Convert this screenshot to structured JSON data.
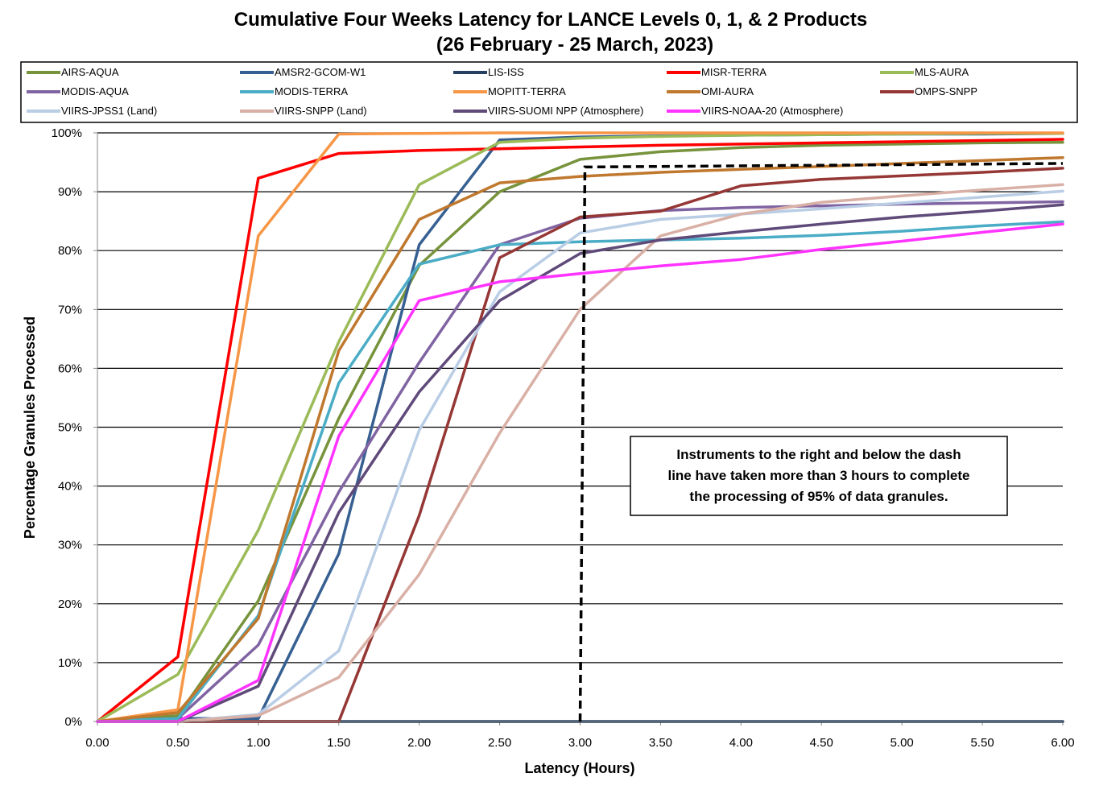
{
  "chart_data": {
    "type": "line",
    "title": "Cumulative Four Weeks Latency  for LANCE Levels 0, 1, & 2 Products",
    "subtitle": "(26  February   -  25  March,  2023)",
    "xlabel": "Latency (Hours)",
    "ylabel": "Percentage Granules Processed",
    "x": [
      0,
      0.5,
      1.0,
      1.5,
      2.0,
      2.5,
      3.0,
      3.5,
      4.0,
      4.5,
      5.0,
      5.5,
      6.0
    ],
    "xticks": [
      "0.00",
      "0.50",
      "1.00",
      "1.50",
      "2.00",
      "2.50",
      "3.00",
      "3.50",
      "4.00",
      "4.50",
      "5.00",
      "5.50",
      "6.00"
    ],
    "yticks": [
      "0%",
      "10%",
      "20%",
      "30%",
      "40%",
      "50%",
      "60%",
      "70%",
      "80%",
      "90%",
      "100%"
    ],
    "xlim": [
      0,
      6
    ],
    "ylim": [
      0,
      100
    ],
    "grid": "horizontal",
    "legend_position": "top",
    "series": [
      {
        "name": "AIRS-AQUA",
        "color": "#77933C",
        "values": [
          0,
          1,
          20.5,
          51.5,
          77.5,
          90,
          95.5,
          96.8,
          97.5,
          97.9,
          98.1,
          98.3,
          98.4
        ]
      },
      {
        "name": "AMSR2-GCOM-W1",
        "color": "#376092",
        "values": [
          0,
          0.5,
          0.5,
          28.5,
          81,
          98.8,
          99.3,
          99.5,
          99.6,
          99.7,
          99.8,
          99.8,
          99.9
        ]
      },
      {
        "name": "LIS-ISS",
        "color": "#254061",
        "values": [
          0,
          0,
          0,
          0,
          0,
          0,
          0,
          0,
          0,
          0,
          0,
          0,
          0
        ]
      },
      {
        "name": "MISR-TERRA",
        "color": "#FF0000",
        "values": [
          0,
          11,
          92.3,
          96.5,
          97,
          97.3,
          97.6,
          97.9,
          98.1,
          98.3,
          98.5,
          98.7,
          98.9
        ]
      },
      {
        "name": "MLS-AURA",
        "color": "#9BBB59",
        "values": [
          0,
          8,
          32.5,
          64.5,
          91.2,
          98.4,
          99.1,
          99.4,
          99.6,
          99.7,
          99.8,
          99.9,
          99.9
        ]
      },
      {
        "name": "MODIS-AQUA",
        "color": "#8064A2",
        "values": [
          0,
          0.5,
          13,
          39,
          61,
          81,
          85.5,
          86.8,
          87.3,
          87.6,
          87.9,
          88.1,
          88.3
        ]
      },
      {
        "name": "MODIS-TERRA",
        "color": "#4BACC6",
        "values": [
          0,
          0.5,
          18,
          57.5,
          77.7,
          81,
          81.5,
          81.8,
          82.1,
          82.6,
          83.3,
          84.2,
          84.9
        ]
      },
      {
        "name": "MOPITT-TERRA",
        "color": "#F79646",
        "values": [
          0,
          2,
          82.5,
          99.8,
          99.9,
          100,
          100,
          100,
          100,
          100,
          100,
          100,
          100
        ]
      },
      {
        "name": "OMI-AURA",
        "color": "#C0782E",
        "values": [
          0,
          1.5,
          17.5,
          63,
          85.3,
          91.5,
          92.6,
          93.3,
          93.8,
          94.3,
          94.8,
          95.3,
          95.8
        ]
      },
      {
        "name": "OMPS-SNPP",
        "color": "#953735",
        "values": [
          0,
          0,
          0,
          0,
          35,
          78.8,
          85.7,
          86.7,
          91,
          92.1,
          92.7,
          93.3,
          94
        ]
      },
      {
        "name": "VIIRS-JPSS1 (Land)",
        "color": "#B9CDE5",
        "values": [
          0,
          0,
          1.2,
          12,
          49.5,
          73,
          83,
          85.3,
          86.2,
          87.1,
          88.1,
          89.1,
          90.1
        ]
      },
      {
        "name": "VIIRS-SNPP (Land)",
        "color": "#D9B0A6",
        "values": [
          0,
          0,
          1,
          7.5,
          25,
          49,
          70,
          82.5,
          86.2,
          88.2,
          89.3,
          90.3,
          91.2
        ]
      },
      {
        "name": "VIIRS-SUOMI NPP (Atmosphere)",
        "color": "#5F4A7A",
        "values": [
          0,
          0,
          6,
          35.5,
          56,
          71.5,
          79.5,
          81.8,
          83.2,
          84.5,
          85.7,
          86.7,
          87.8
        ]
      },
      {
        "name": "VIIRS-NOAA-20 (Atmosphere)",
        "color": "#FF33FF",
        "values": [
          0,
          0,
          7,
          48.5,
          71.5,
          74.7,
          76.1,
          77.4,
          78.5,
          80.2,
          81.6,
          83.1,
          84.5
        ]
      }
    ],
    "threshold_line": {
      "x": [
        3.0,
        3.03,
        6.0
      ],
      "y": [
        0,
        94.2,
        94.8
      ],
      "style": "dashed",
      "color": "#000000"
    },
    "annotation": [
      "Instruments to the right and below the dash",
      "line have taken more than 3 hours to complete",
      "the processing of 95% of data granules."
    ]
  }
}
